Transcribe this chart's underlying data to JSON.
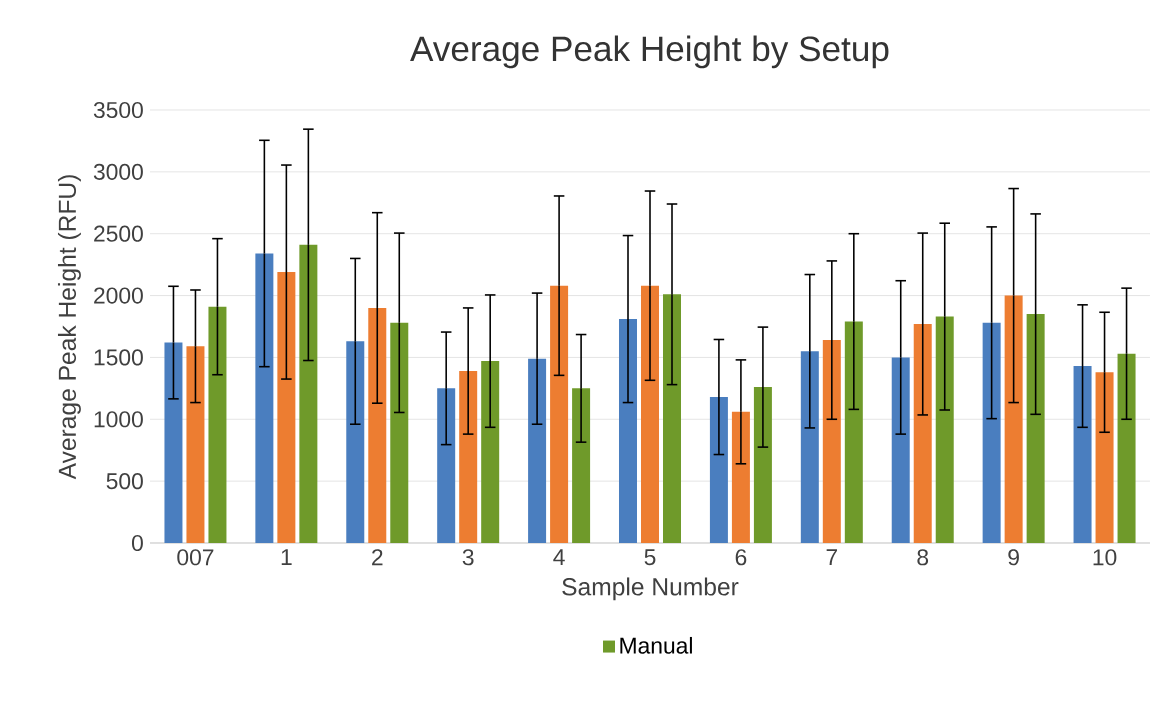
{
  "chart_data": {
    "type": "bar",
    "title": "Average Peak Height by Setup",
    "xlabel": "Sample Number",
    "ylabel": "Average Peak Height (RFU)",
    "categories": [
      "007",
      "1",
      "2",
      "3",
      "4",
      "5",
      "6",
      "7",
      "8",
      "9",
      "10"
    ],
    "series": [
      {
        "color": "#4a7ebf",
        "values": [
          1620,
          2340,
          1630,
          1250,
          1490,
          1810,
          1180,
          1550,
          1500,
          1780,
          1430
        ],
        "errors": [
          455,
          915,
          670,
          455,
          530,
          675,
          465,
          620,
          620,
          775,
          495
        ]
      },
      {
        "color": "#ed7d31",
        "values": [
          1590,
          2190,
          1900,
          1390,
          2080,
          2080,
          1060,
          1640,
          1770,
          2000,
          1380
        ],
        "errors": [
          455,
          865,
          770,
          510,
          725,
          765,
          420,
          640,
          735,
          865,
          485
        ]
      },
      {
        "name": "Manual",
        "color": "#6f9a2a",
        "values": [
          1910,
          2410,
          1780,
          1470,
          1250,
          2010,
          1260,
          1790,
          1830,
          1850,
          1530
        ],
        "errors": [
          550,
          935,
          725,
          535,
          435,
          730,
          485,
          710,
          755,
          810,
          530
        ]
      }
    ],
    "ylim": [
      0,
      3500
    ],
    "yticks": [
      0,
      500,
      1000,
      1500,
      2000,
      2500,
      3000,
      3500
    ],
    "grid": "y",
    "legend": "bottom"
  }
}
